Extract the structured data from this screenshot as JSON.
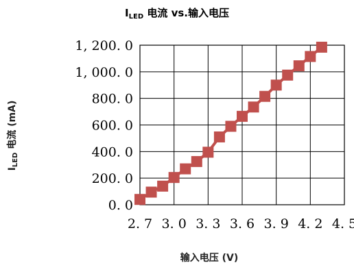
{
  "chart_data": {
    "type": "line",
    "title": {
      "main": "I",
      "sub": "LED",
      "rest": " 电流 vs.输入电压"
    },
    "xlabel": "输入电压 (V)",
    "ylabel": {
      "main": "I",
      "sub": "LED",
      "rest": " 电流 (mA)"
    },
    "xlim": [
      2.7,
      4.5
    ],
    "ylim": [
      0,
      1200
    ],
    "x_ticks": [
      "2. 7",
      "3. 0",
      "3. 3",
      "3. 6",
      "3. 9",
      "4. 2",
      "4. 5"
    ],
    "x_tick_values": [
      2.7,
      3.0,
      3.3,
      3.6,
      3.9,
      4.2,
      4.5
    ],
    "y_ticks": [
      "0. 0",
      "200. 0",
      "400. 0",
      "600. 0",
      "800. 0",
      "1, 000. 0",
      "1, 200. 0"
    ],
    "y_tick_values": [
      0,
      200,
      400,
      600,
      800,
      1000,
      1200
    ],
    "grid": true,
    "marker": "square",
    "series": [
      {
        "color": "#c0504d",
        "x": [
          2.7,
          2.8,
          2.9,
          3.0,
          3.1,
          3.2,
          3.3,
          3.4,
          3.5,
          3.6,
          3.7,
          3.8,
          3.9,
          4.0,
          4.1,
          4.2,
          4.3
        ],
        "values": [
          40,
          95,
          140,
          205,
          270,
          325,
          395,
          510,
          590,
          665,
          735,
          815,
          900,
          975,
          1045,
          1115,
          1185
        ]
      }
    ]
  }
}
